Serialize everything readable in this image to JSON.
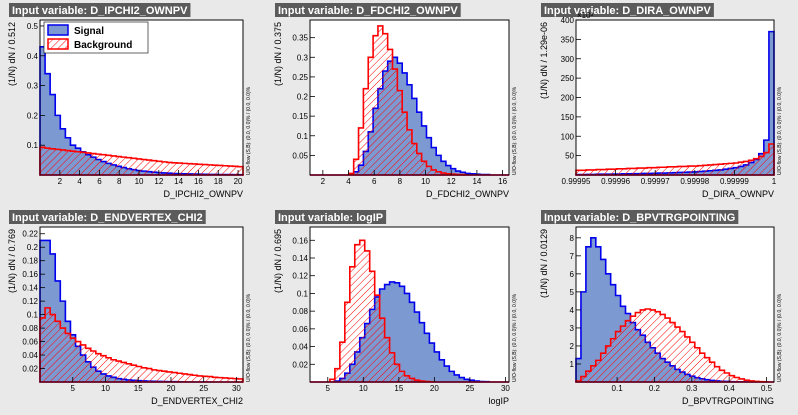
{
  "colors": {
    "signal_fill": "#7d99d1",
    "signal_line": "#0000ee",
    "background_line": "#ff0000",
    "title_bg": "#5b5b5b",
    "frame_bg": "#ffffff"
  },
  "legend": {
    "signal": "Signal",
    "background": "Background"
  },
  "overflow_text": "U/O-flow (S,B): (0.0, 0.0)% / (0.0, 0.0)%",
  "chart_data": [
    {
      "type": "bar",
      "title": "Input variable: D_IPCHI2_OWNPV",
      "xlabel": "D_IPCHI2_OWNPV",
      "ylabel": "(1/N) dN / 0.512",
      "xlim": [
        0,
        20.5
      ],
      "ylim": [
        0,
        0.52
      ],
      "xticks": [
        2,
        4,
        6,
        8,
        10,
        12,
        14,
        16,
        18,
        20
      ],
      "yticks": [
        0.1,
        0.2,
        0.3,
        0.4,
        0.5
      ],
      "y_multiplier": "",
      "legend_in": true,
      "series": [
        {
          "name": "Signal",
          "values": [
            0.43,
            0.34,
            0.27,
            0.2,
            0.155,
            0.125,
            0.1,
            0.09,
            0.078,
            0.068,
            0.06,
            0.052,
            0.045,
            0.039,
            0.034,
            0.029,
            0.025,
            0.021,
            0.018,
            0.015,
            0.013,
            0.011,
            0.0095,
            0.008,
            0.007,
            0.006,
            0.005,
            0.0045,
            0.004,
            0.0035,
            0.003,
            0.0027,
            0.0024,
            0.0021,
            0.0019,
            0.0017,
            0.0015,
            0.0013,
            0.0012,
            0.001
          ]
        },
        {
          "name": "Background",
          "values": [
            0.093,
            0.09,
            0.088,
            0.086,
            0.084,
            0.082,
            0.08,
            0.078,
            0.076,
            0.074,
            0.072,
            0.07,
            0.068,
            0.066,
            0.064,
            0.062,
            0.06,
            0.058,
            0.056,
            0.054,
            0.052,
            0.05,
            0.048,
            0.046,
            0.044,
            0.042,
            0.041,
            0.04,
            0.039,
            0.038,
            0.037,
            0.036,
            0.035,
            0.034,
            0.033,
            0.032,
            0.031,
            0.03,
            0.029,
            0.028
          ]
        }
      ]
    },
    {
      "type": "bar",
      "title": "Input variable: D_FDCHI2_OWNPV",
      "xlabel": "D_FDCHI2_OWNPV",
      "ylabel": "(1/N) dN / 0.375",
      "xlim": [
        1,
        16.5
      ],
      "ylim": [
        0,
        0.395
      ],
      "xticks": [
        2,
        4,
        6,
        8,
        10,
        12,
        14,
        16
      ],
      "yticks": [
        0.05,
        0.1,
        0.15,
        0.2,
        0.25,
        0.3,
        0.35
      ],
      "y_multiplier": "",
      "legend_in": false,
      "series": [
        {
          "name": "Signal",
          "values": [
            0,
            0,
            0,
            0,
            0,
            0,
            0,
            0,
            0.002,
            0.008,
            0.025,
            0.06,
            0.11,
            0.17,
            0.22,
            0.265,
            0.29,
            0.3,
            0.285,
            0.26,
            0.23,
            0.195,
            0.16,
            0.125,
            0.095,
            0.07,
            0.05,
            0.035,
            0.024,
            0.016,
            0.01,
            0.007,
            0.004,
            0.003,
            0.002,
            0.001,
            0.001,
            0,
            0,
            0,
            0
          ]
        },
        {
          "name": "Background",
          "values": [
            0,
            0,
            0,
            0,
            0,
            0,
            0,
            0,
            0.004,
            0.04,
            0.12,
            0.22,
            0.3,
            0.355,
            0.38,
            0.36,
            0.32,
            0.27,
            0.215,
            0.16,
            0.115,
            0.08,
            0.055,
            0.035,
            0.022,
            0.013,
            0.008,
            0.005,
            0.003,
            0.002,
            0.001,
            0.001,
            0,
            0,
            0,
            0,
            0,
            0,
            0,
            0,
            0
          ]
        }
      ]
    },
    {
      "type": "bar",
      "title": "Input variable: D_DIRA_OWNPV",
      "xlabel": "D_DIRA_OWNPV",
      "ylabel": "(1/N) dN / 1.29e-06",
      "xlim": [
        0.99995,
        1.0
      ],
      "ylim": [
        0,
        400
      ],
      "xticks": [
        0.99995,
        0.99996,
        0.99997,
        0.99998,
        0.99999,
        1
      ],
      "xtick_labels": [
        "0.99995",
        "0.99996",
        "0.99997",
        "0.99998",
        "0.99999",
        "1"
      ],
      "yticks": [
        50,
        100,
        150,
        200,
        250,
        300,
        350,
        400
      ],
      "y_multiplier": "×10³",
      "legend_in": false,
      "series": [
        {
          "name": "Signal",
          "values": [
            1,
            1,
            1.5,
            1.5,
            2,
            2,
            2,
            2.5,
            2.5,
            3,
            3,
            3.5,
            3.5,
            4,
            4,
            4.5,
            5,
            5,
            5.5,
            6,
            6.5,
            7,
            7.5,
            8,
            9,
            10,
            11,
            12,
            13,
            15,
            17,
            19,
            22,
            26,
            32,
            40,
            55,
            90,
            370
          ]
        },
        {
          "name": "Background",
          "values": [
            12,
            12,
            13,
            13,
            14,
            14,
            15,
            15,
            16,
            16,
            17,
            17,
            18,
            18,
            19,
            19,
            20,
            20,
            21,
            21,
            22,
            22,
            23,
            23,
            24,
            25,
            26,
            27,
            28,
            29,
            30,
            31,
            33,
            35,
            38,
            42,
            48,
            58,
            80
          ]
        }
      ]
    },
    {
      "type": "bar",
      "title": "Input variable: D_ENDVERTEX_CHI2",
      "xlabel": "D_ENDVERTEX_CHI2",
      "ylabel": "(1/N) dN / 0.769",
      "xlim": [
        0,
        31
      ],
      "ylim": [
        0,
        0.23
      ],
      "xticks": [
        5,
        10,
        15,
        20,
        25,
        30
      ],
      "yticks": [
        0.02,
        0.04,
        0.06,
        0.08,
        0.1,
        0.12,
        0.14,
        0.16,
        0.18,
        0.2,
        0.22
      ],
      "y_multiplier": "",
      "legend_in": false,
      "series": [
        {
          "name": "Signal",
          "values": [
            0.21,
            0.21,
            0.19,
            0.15,
            0.12,
            0.09,
            0.07,
            0.053,
            0.04,
            0.03,
            0.022,
            0.016,
            0.012,
            0.009,
            0.007,
            0.005,
            0.004,
            0.003,
            0.0025,
            0.002,
            0.0016,
            0.0013,
            0.001,
            0.0008,
            0.0006,
            0.0005,
            0.0004,
            0.0003,
            0.0002,
            0.0002,
            0.0001,
            0.0001,
            0.0001,
            0.0001,
            0,
            0,
            0,
            0,
            0,
            0
          ]
        },
        {
          "name": "Background",
          "values": [
            0.095,
            0.11,
            0.1,
            0.09,
            0.08,
            0.072,
            0.065,
            0.06,
            0.055,
            0.05,
            0.046,
            0.042,
            0.039,
            0.036,
            0.033,
            0.031,
            0.029,
            0.027,
            0.025,
            0.023,
            0.021,
            0.02,
            0.018,
            0.017,
            0.016,
            0.015,
            0.014,
            0.013,
            0.012,
            0.011,
            0.01,
            0.009,
            0.0085,
            0.008,
            0.007,
            0.0065,
            0.006,
            0.0055,
            0.005,
            0.0045
          ]
        }
      ]
    },
    {
      "type": "bar",
      "title": "Input variable: logIP",
      "xlabel": "logIP",
      "ylabel": "(1/N) dN / 0.695",
      "xlim": [
        2.5,
        30.5
      ],
      "ylim": [
        0,
        0.175
      ],
      "xticks": [
        5,
        10,
        15,
        20,
        25,
        30
      ],
      "yticks": [
        0.02,
        0.04,
        0.06,
        0.08,
        0.1,
        0.12,
        0.14,
        0.16
      ],
      "y_multiplier": "",
      "legend_in": false,
      "series": [
        {
          "name": "Signal",
          "values": [
            0,
            0,
            0,
            0,
            0,
            0.001,
            0.004,
            0.01,
            0.02,
            0.034,
            0.05,
            0.066,
            0.082,
            0.096,
            0.105,
            0.11,
            0.113,
            0.112,
            0.108,
            0.1,
            0.09,
            0.079,
            0.067,
            0.055,
            0.044,
            0.034,
            0.025,
            0.018,
            0.012,
            0.008,
            0.005,
            0.003,
            0.002,
            0.001,
            0.0005,
            0.0003,
            0,
            0,
            0,
            0
          ]
        },
        {
          "name": "Background",
          "values": [
            0,
            0,
            0,
            0,
            0.003,
            0.015,
            0.045,
            0.09,
            0.13,
            0.155,
            0.16,
            0.148,
            0.125,
            0.098,
            0.072,
            0.05,
            0.033,
            0.02,
            0.012,
            0.007,
            0.004,
            0.002,
            0.001,
            0.0005,
            0.0002,
            0,
            0,
            0,
            0,
            0,
            0,
            0,
            0,
            0,
            0,
            0,
            0,
            0,
            0,
            0
          ]
        }
      ]
    },
    {
      "type": "bar",
      "title": "Input variable: D_BPVTRGPOINTING",
      "xlabel": "D_BPVTRGPOINTING",
      "ylabel": "(1/N) dN / 0.0129",
      "xlim": [
        -0.01,
        0.52
      ],
      "ylim": [
        0,
        8.6
      ],
      "xticks": [
        0.1,
        0.2,
        0.3,
        0.4,
        0.5
      ],
      "yticks": [
        1,
        2,
        3,
        4,
        5,
        6,
        7,
        8
      ],
      "y_multiplier": "",
      "legend_in": false,
      "series": [
        {
          "name": "Signal",
          "values": [
            1.3,
            5.0,
            7.5,
            8.0,
            7.5,
            6.8,
            6.0,
            5.4,
            4.8,
            4.2,
            3.8,
            3.3,
            2.9,
            2.6,
            2.2,
            1.9,
            1.6,
            1.3,
            1.1,
            0.9,
            0.7,
            0.55,
            0.42,
            0.32,
            0.24,
            0.18,
            0.13,
            0.09,
            0.06,
            0.04,
            0.03,
            0.02,
            0.012,
            0.008,
            0.005,
            0.003,
            0.002,
            0.001,
            0,
            0
          ]
        },
        {
          "name": "Background",
          "values": [
            0.05,
            0.3,
            0.6,
            0.9,
            1.2,
            1.6,
            2.0,
            2.4,
            2.8,
            3.1,
            3.4,
            3.65,
            3.85,
            4.0,
            4.05,
            4.0,
            3.9,
            3.75,
            3.55,
            3.3,
            3.05,
            2.8,
            2.5,
            2.2,
            1.9,
            1.6,
            1.35,
            1.1,
            0.85,
            0.65,
            0.5,
            0.35,
            0.25,
            0.17,
            0.1,
            0.06,
            0.03,
            0.015,
            0.005,
            0
          ]
        }
      ]
    }
  ]
}
